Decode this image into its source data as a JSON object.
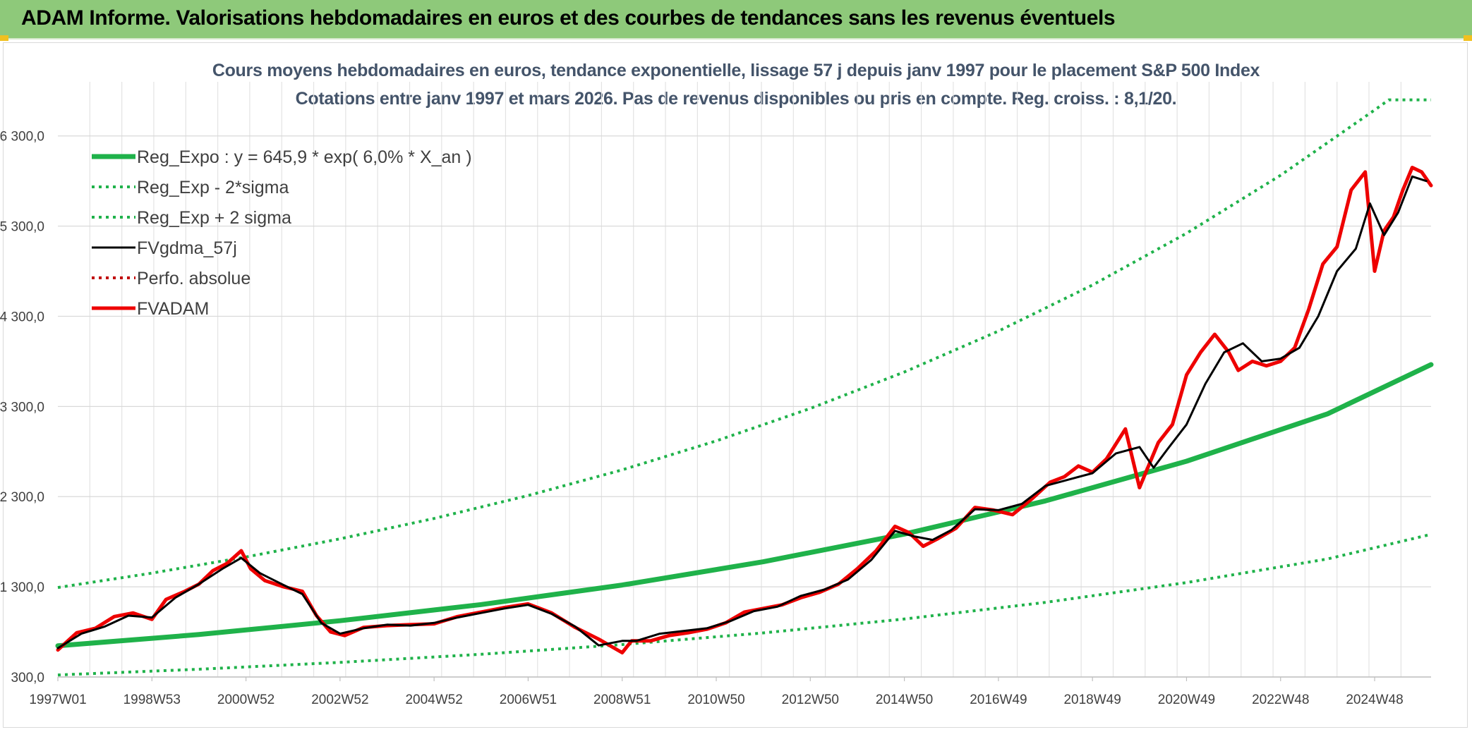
{
  "header": {
    "title": "ADAM Informe. Valorisations hebdomadaires en euros et des courbes de tendances sans les revenus éventuels"
  },
  "chart_data": {
    "type": "line",
    "title": "Cours moyens hebdomadaires en euros, tendance exponentielle, lissage 57 j depuis janv 1997 pour le placement S&P 500 Index",
    "subtitle": "Cotations entre janv 1997 et mars 2026. Pas de revenus disponibles ou pris en compte. Reg. croiss. : 8,1/20.",
    "xlabel": "",
    "ylabel": "",
    "xlim": [
      1997.0,
      2026.2
    ],
    "ylim": [
      300,
      6900
    ],
    "grid": true,
    "legend_position": "top-left",
    "y_ticks": [
      {
        "value": 300,
        "label": "300,0"
      },
      {
        "value": 1300,
        "label": "1 300,0"
      },
      {
        "value": 2300,
        "label": "2 300,0"
      },
      {
        "value": 3300,
        "label": "3 300,0"
      },
      {
        "value": 4300,
        "label": "4 300,0"
      },
      {
        "value": 5300,
        "label": "5 300,0"
      },
      {
        "value": 6300,
        "label": "6 300,0"
      }
    ],
    "x_ticks": [
      {
        "value": 1997.0,
        "label": "1997W01"
      },
      {
        "value": 1999.0,
        "label": "1998W53"
      },
      {
        "value": 2001.0,
        "label": "2000W52"
      },
      {
        "value": 2003.0,
        "label": "2002W52"
      },
      {
        "value": 2005.0,
        "label": "2004W52"
      },
      {
        "value": 2007.0,
        "label": "2006W51"
      },
      {
        "value": 2009.0,
        "label": "2008W51"
      },
      {
        "value": 2011.0,
        "label": "2010W50"
      },
      {
        "value": 2013.0,
        "label": "2012W50"
      },
      {
        "value": 2015.0,
        "label": "2014W50"
      },
      {
        "value": 2017.0,
        "label": "2016W49"
      },
      {
        "value": 2019.0,
        "label": "2018W49"
      },
      {
        "value": 2021.0,
        "label": "2020W49"
      },
      {
        "value": 2023.0,
        "label": "2022W48"
      },
      {
        "value": 2025.0,
        "label": "2024W48"
      }
    ],
    "series": [
      {
        "name": "Reg_Expo : y = 645,9 * exp( 6,0% *  X_an )",
        "style": "thick-solid",
        "color": "#1fb24a",
        "x": [
          1997,
          2000,
          2003,
          2006,
          2009,
          2012,
          2015,
          2018,
          2021,
          2024,
          2026.2
        ],
        "values": [
          645.9,
          771,
          924,
          1103,
          1320,
          1578,
          1885,
          2253,
          2693,
          3218,
          3764
        ]
      },
      {
        "name": "Reg_Exp - 2*sigma",
        "style": "dotted",
        "color": "#1fb24a",
        "x": [
          1997,
          2000,
          2003,
          2006,
          2009,
          2012,
          2015,
          2018,
          2021,
          2024,
          2026.2
        ],
        "values": [
          323,
          386,
          462,
          552,
          660,
          789,
          943,
          1127,
          1347,
          1609,
          1882
        ]
      },
      {
        "name": "Reg_Exp + 2 sigma",
        "style": "dotted",
        "color": "#1fb24a",
        "x": [
          1997,
          1999,
          2001,
          2003,
          2005,
          2007,
          2009,
          2011,
          2013,
          2015,
          2017,
          2019,
          2021,
          2023,
          2025,
          2025.3,
          2026.2
        ],
        "values": [
          1292,
          1452,
          1631,
          1832,
          2058,
          2312,
          2597,
          2918,
          3278,
          3682,
          4136,
          4646,
          5220,
          5863,
          6587,
          6700,
          6700
        ]
      },
      {
        "name": "FVgdma_57j",
        "style": "solid",
        "color": "#000000",
        "x": [
          1997.0,
          1997.5,
          1998.0,
          1998.5,
          1999.0,
          1999.5,
          2000.0,
          2000.5,
          2000.9,
          2001.3,
          2001.8,
          2002.2,
          2002.6,
          2003.0,
          2003.5,
          2004.0,
          2004.5,
          2005.0,
          2005.5,
          2006.0,
          2006.5,
          2007.0,
          2007.5,
          2008.0,
          2008.5,
          2009.0,
          2009.3,
          2009.8,
          2010.3,
          2010.8,
          2011.3,
          2011.8,
          2012.3,
          2012.8,
          2013.3,
          2013.8,
          2014.3,
          2014.8,
          2015.2,
          2015.6,
          2016.0,
          2016.5,
          2017.0,
          2017.5,
          2018.0,
          2018.5,
          2019.0,
          2019.5,
          2020.0,
          2020.3,
          2020.6,
          2021.0,
          2021.4,
          2021.8,
          2022.2,
          2022.6,
          2023.0,
          2023.4,
          2023.8,
          2024.2,
          2024.6,
          2024.9,
          2025.2,
          2025.5,
          2025.8,
          2026.1
        ],
        "values": [
          620,
          780,
          860,
          980,
          960,
          1180,
          1330,
          1500,
          1620,
          1450,
          1320,
          1220,
          900,
          780,
          840,
          880,
          870,
          900,
          960,
          1010,
          1060,
          1100,
          1000,
          860,
          650,
          700,
          700,
          780,
          810,
          840,
          920,
          1030,
          1080,
          1200,
          1270,
          1380,
          1600,
          1920,
          1860,
          1820,
          1930,
          2160,
          2150,
          2220,
          2420,
          2490,
          2560,
          2780,
          2850,
          2620,
          2830,
          3100,
          3550,
          3900,
          4000,
          3800,
          3830,
          3950,
          4300,
          4800,
          5050,
          5550,
          5200,
          5450,
          5850,
          5800
        ]
      },
      {
        "name": "Perfo. absolue",
        "style": "dotted",
        "color": "#c00000",
        "x": [],
        "values": []
      },
      {
        "name": "FVADAM",
        "style": "thick-solid",
        "color": "#ee0000",
        "x": [
          1997.0,
          1997.4,
          1997.8,
          1998.2,
          1998.6,
          1999.0,
          1999.3,
          1999.7,
          2000.0,
          2000.3,
          2000.6,
          2000.9,
          2001.1,
          2001.4,
          2001.8,
          2002.2,
          2002.5,
          2002.8,
          2003.1,
          2003.5,
          2004.0,
          2004.5,
          2005.0,
          2005.5,
          2006.0,
          2006.5,
          2007.0,
          2007.5,
          2008.0,
          2008.5,
          2009.0,
          2009.2,
          2009.6,
          2010.0,
          2010.4,
          2010.8,
          2011.2,
          2011.6,
          2012.0,
          2012.4,
          2012.8,
          2013.2,
          2013.6,
          2014.0,
          2014.4,
          2014.8,
          2015.1,
          2015.4,
          2015.7,
          2016.1,
          2016.5,
          2016.9,
          2017.3,
          2017.7,
          2018.1,
          2018.4,
          2018.7,
          2019.0,
          2019.3,
          2019.7,
          2020.0,
          2020.2,
          2020.4,
          2020.7,
          2021.0,
          2021.3,
          2021.6,
          2021.9,
          2022.1,
          2022.4,
          2022.7,
          2023.0,
          2023.3,
          2023.6,
          2023.9,
          2024.2,
          2024.5,
          2024.8,
          2025.0,
          2025.2,
          2025.4,
          2025.6,
          2025.8,
          2026.0,
          2026.2
        ],
        "values": [
          600,
          790,
          840,
          970,
          1010,
          940,
          1160,
          1250,
          1330,
          1480,
          1560,
          1700,
          1500,
          1370,
          1300,
          1250,
          980,
          800,
          760,
          850,
          870,
          880,
          890,
          970,
          1020,
          1070,
          1110,
          1010,
          850,
          720,
          570,
          700,
          700,
          760,
          790,
          830,
          900,
          1020,
          1060,
          1100,
          1180,
          1240,
          1330,
          1500,
          1700,
          1970,
          1900,
          1750,
          1830,
          1950,
          2180,
          2150,
          2100,
          2270,
          2460,
          2520,
          2640,
          2570,
          2720,
          3050,
          2400,
          2650,
          2900,
          3100,
          3650,
          3900,
          4100,
          3900,
          3700,
          3800,
          3750,
          3800,
          3950,
          4380,
          4880,
          5070,
          5700,
          5900,
          4800,
          5250,
          5400,
          5700,
          5950,
          5900,
          5750
        ]
      }
    ]
  }
}
